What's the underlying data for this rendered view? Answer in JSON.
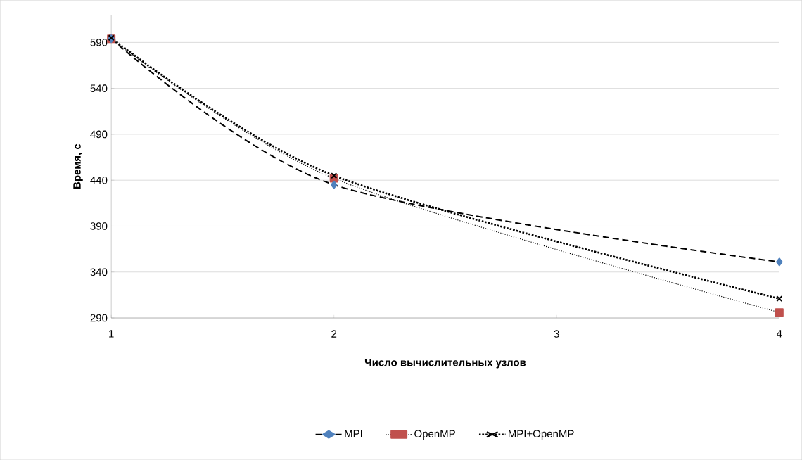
{
  "chart_data": {
    "type": "line",
    "xlabel": "Число вычислительных  узлов",
    "ylabel": "Время, с",
    "x": [
      1,
      2,
      4
    ],
    "xlim": [
      1,
      4
    ],
    "xticks": [
      1,
      2,
      3,
      4
    ],
    "ylim": [
      290,
      620
    ],
    "yticks": [
      290,
      340,
      390,
      440,
      490,
      540,
      590
    ],
    "grid": "y",
    "legend": "bottom",
    "series": [
      {
        "name": "MPI",
        "color": "#4f81bd",
        "values": [
          594,
          435,
          351
        ],
        "marker": "diamond",
        "line_style": "dashed"
      },
      {
        "name": "OpenMP",
        "color": "#c0504d",
        "values": [
          594,
          442,
          296
        ],
        "marker": "square",
        "line_style": "dotted"
      },
      {
        "name": "MPI+OpenMP",
        "color": "#000000",
        "values": [
          595,
          445,
          311
        ],
        "marker": "cross",
        "line_style": "dotted"
      }
    ]
  }
}
